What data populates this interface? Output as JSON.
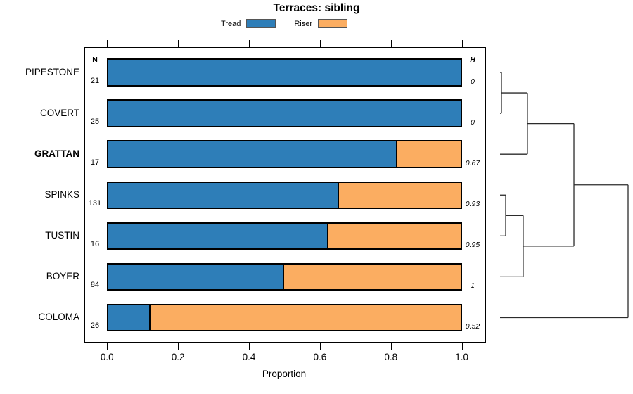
{
  "chart_data": {
    "type": "bar",
    "orientation": "horizontal-stacked",
    "title": "Terraces: sibling",
    "xlabel": "Proportion",
    "xlim": [
      0,
      1
    ],
    "x_ticks": [
      "0.0",
      "0.2",
      "0.4",
      "0.6",
      "0.8",
      "1.0"
    ],
    "x_tick_values": [
      0,
      0.2,
      0.4,
      0.6,
      0.8,
      1
    ],
    "grid": false,
    "legend": {
      "position": "top-center",
      "items": [
        {
          "label": "Tread",
          "color": "#2E7EB8"
        },
        {
          "label": "Riser",
          "color": "#FBAD61"
        }
      ]
    },
    "n_column_header": "N",
    "h_column_header": "H",
    "rows": [
      {
        "label": "PIPESTONE",
        "bold": false,
        "n": 21,
        "tread": 1.0,
        "riser": 0.0,
        "h": "0"
      },
      {
        "label": "COVERT",
        "bold": false,
        "n": 25,
        "tread": 1.0,
        "riser": 0.0,
        "h": "0"
      },
      {
        "label": "GRATTAN",
        "bold": true,
        "n": 17,
        "tread": 0.82,
        "riser": 0.18,
        "h": "0.67"
      },
      {
        "label": "SPINKS",
        "bold": false,
        "n": 131,
        "tread": 0.655,
        "riser": 0.345,
        "h": "0.93"
      },
      {
        "label": "TUSTIN",
        "bold": false,
        "n": 16,
        "tread": 0.625,
        "riser": 0.375,
        "h": "0.95"
      },
      {
        "label": "BOYER",
        "bold": false,
        "n": 84,
        "tread": 0.5,
        "riser": 0.5,
        "h": "1"
      },
      {
        "label": "COLOMA",
        "bold": false,
        "n": 26,
        "tread": 0.12,
        "riser": 0.88,
        "h": "0.52"
      }
    ],
    "colors": {
      "tread": "#2E7EB8",
      "riser": "#FBAD61",
      "bar_border": "#000000",
      "box_border": "#000000",
      "dendrogram_line": "#2b2b2b"
    },
    "dendrogram": {
      "heights_normalized": true,
      "tree": {
        "h": 1.0,
        "children": [
          {
            "h": 0.577,
            "children": [
              {
                "h": 0.214,
                "children": [
                  {
                    "h": 0.011,
                    "children": [
                      {
                        "leaf": "PIPESTONE"
                      },
                      {
                        "leaf": "COVERT"
                      }
                    ]
                  },
                  {
                    "leaf": "GRATTAN"
                  }
                ]
              },
              {
                "h": 0.181,
                "children": [
                  {
                    "h": 0.044,
                    "children": [
                      {
                        "leaf": "SPINKS"
                      },
                      {
                        "leaf": "TUSTIN"
                      }
                    ]
                  },
                  {
                    "leaf": "BOYER"
                  }
                ]
              }
            ]
          },
          {
            "leaf": "COLOMA"
          }
        ]
      }
    }
  }
}
